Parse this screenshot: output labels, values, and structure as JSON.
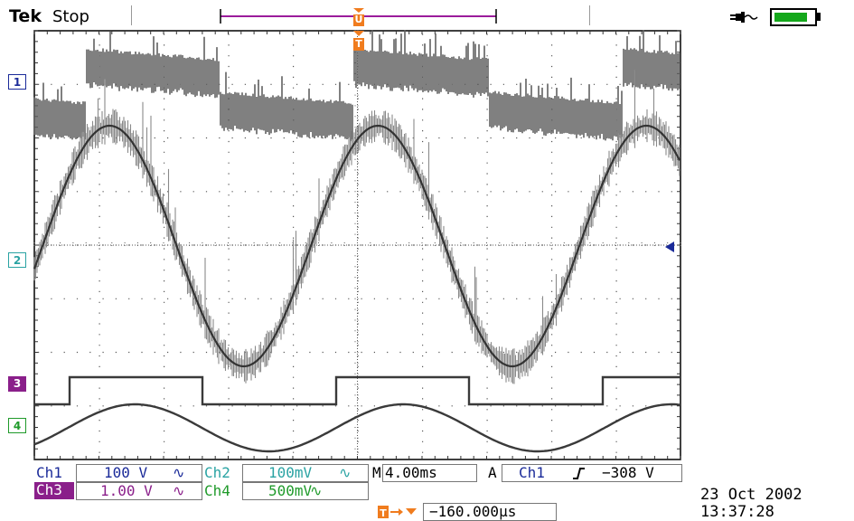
{
  "header": {
    "brand": "Tek",
    "acq_state": "Stop",
    "trigger_position_marker": "U",
    "trigger_marker": "T"
  },
  "channels": [
    {
      "marker": "1",
      "label": "Ch1",
      "scale": "100 V",
      "coupling": "∿",
      "color": "#1a2a99"
    },
    {
      "marker": "2",
      "label": "Ch2",
      "scale": "100mV",
      "coupling": "∿",
      "color": "#2aa3a3"
    },
    {
      "marker": "3",
      "label": "Ch3",
      "scale": "1.00 V",
      "coupling": "∿",
      "color": "#8a1f8a"
    },
    {
      "marker": "4",
      "label": "Ch4",
      "scale": "500mV",
      "coupling": "∿",
      "color": "#1f9a2a"
    }
  ],
  "timebase": {
    "prefix": "M",
    "value": "4.00ms"
  },
  "trigger": {
    "mode": "A",
    "source": "Ch1",
    "slope_icon": "rising-edge-icon",
    "level": "−308 V"
  },
  "trigger_offset": {
    "value": "−160.000µs"
  },
  "timestamp": {
    "date": "23 Oct  2002",
    "time": "13:37:28"
  },
  "power": {
    "source_icon": "ac-plug-icon",
    "battery_level": 0.85,
    "battery_color": "#15a81c"
  },
  "colors": {
    "trace": "#606060",
    "grid": "#555555",
    "trigger_orange": "#f07c1e"
  }
}
